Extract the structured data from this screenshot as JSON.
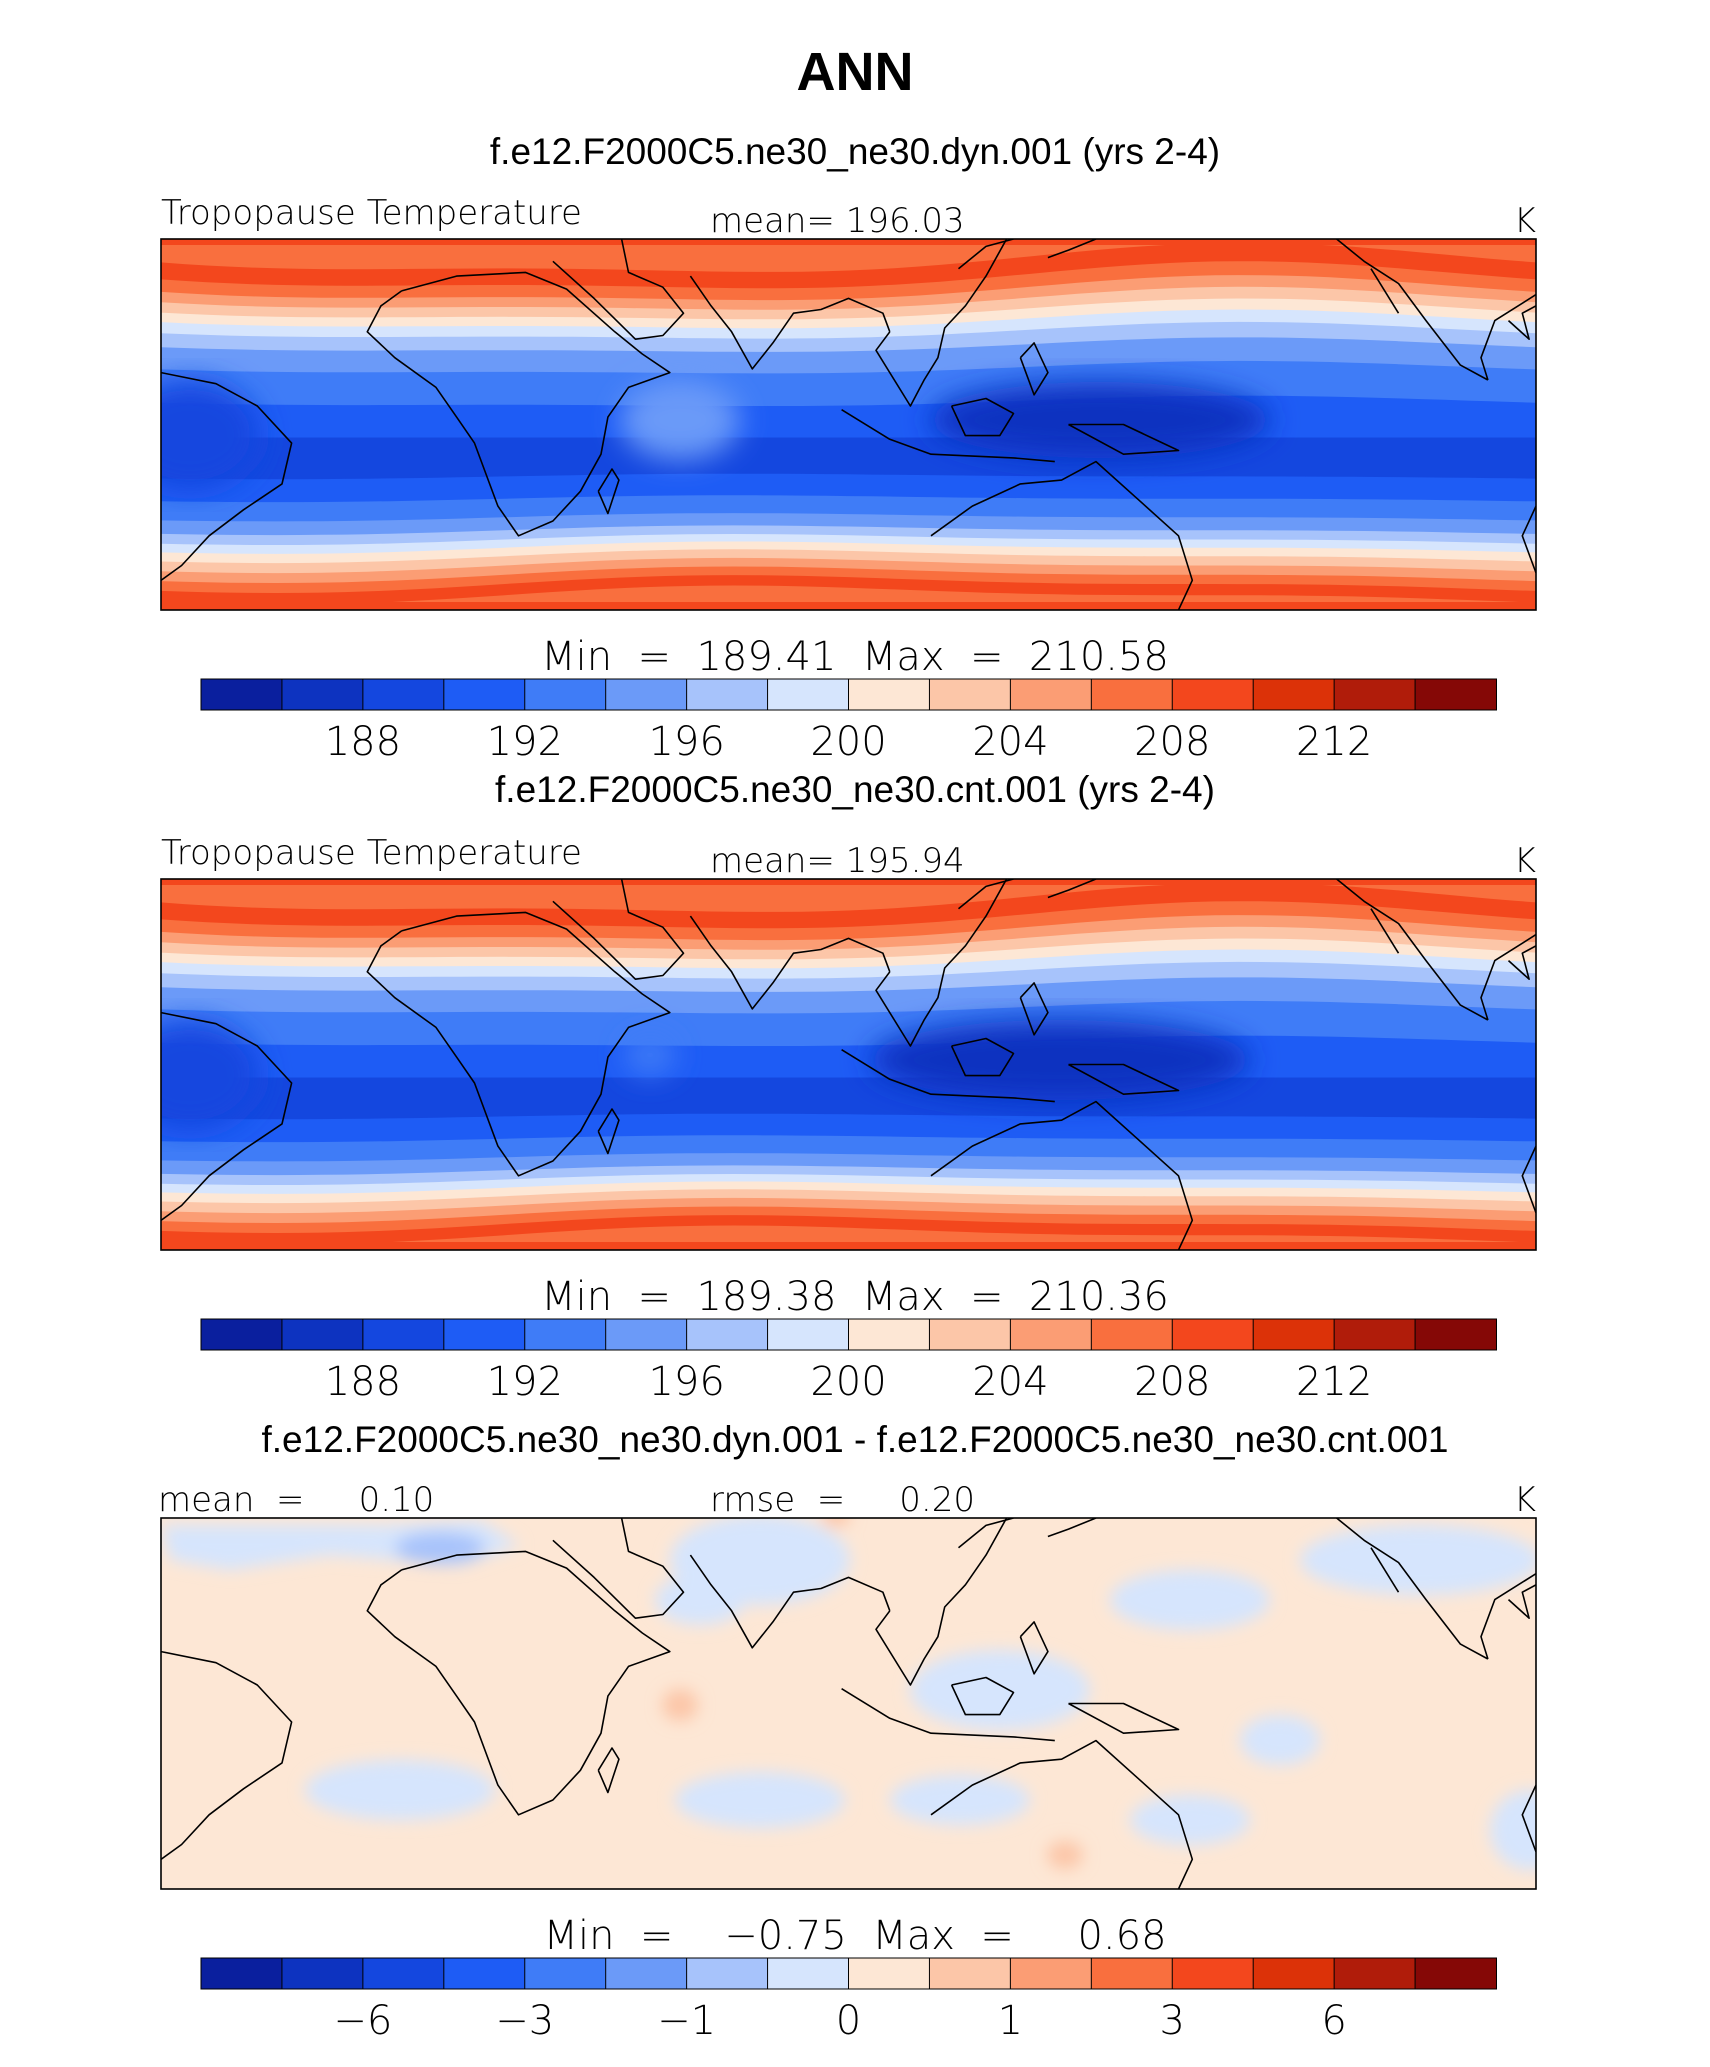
{
  "figure": {
    "title": "ANN"
  },
  "colors": {
    "levels13": [
      "#0a1f9e",
      "#0d33c0",
      "#1447df",
      "#1e5cf5",
      "#3f7cf7",
      "#6b9af8",
      "#a7c3fb",
      "#d6e5fd",
      "#fde7d5",
      "#fcc6a8",
      "#fb9d74",
      "#f96f3e",
      "#f3471d",
      "#dc3208",
      "#b01c0a",
      "#850806"
    ],
    "land_line": "#000000"
  },
  "chart_data": [
    {
      "type": "heatmap",
      "subtitle": "f.e12.F2000C5.ne30_ne30.dyn.001 (yrs 2-4)",
      "variable": "Tropopause Temperature",
      "mean_text": "mean=  196.03",
      "units": "K",
      "minmax_text": "Min  =  189.41  Max  =  210.58",
      "min": 189.41,
      "max": 210.58,
      "mean": 196.03,
      "colorbar_ticks": [
        "188",
        "192",
        "196",
        "200",
        "204",
        "208",
        "212"
      ],
      "colorbar_levels": [
        186,
        188,
        190,
        192,
        194,
        196,
        198,
        200,
        202,
        204,
        206,
        208,
        210,
        212,
        214
      ],
      "xrange": [
        0,
        360
      ],
      "yrange": [
        -90,
        90
      ]
    },
    {
      "type": "heatmap",
      "subtitle": "f.e12.F2000C5.ne30_ne30.cnt.001 (yrs 2-4)",
      "variable": "Tropopause Temperature",
      "mean_text": "mean=  195.94",
      "units": "K",
      "minmax_text": "Min  =  189.38  Max  =  210.36",
      "min": 189.38,
      "max": 210.36,
      "mean": 195.94,
      "colorbar_ticks": [
        "188",
        "192",
        "196",
        "200",
        "204",
        "208",
        "212"
      ],
      "colorbar_levels": [
        186,
        188,
        190,
        192,
        194,
        196,
        198,
        200,
        202,
        204,
        206,
        208,
        210,
        212,
        214
      ],
      "xrange": [
        0,
        360
      ],
      "yrange": [
        -90,
        90
      ]
    },
    {
      "type": "heatmap",
      "subtitle": "f.e12.F2000C5.ne30_ne30.dyn.001 - f.e12.F2000C5.ne30_ne30.cnt.001",
      "mean_text": "mean  =     0.10",
      "rmse_text": "rmse  =     0.20",
      "units": "K",
      "minmax_text": "Min  =    −0.75  Max  =     0.68",
      "min": -0.75,
      "max": 0.68,
      "mean": 0.1,
      "rmse": 0.2,
      "colorbar_ticks": [
        "−6",
        "−3",
        "−1",
        "0",
        "1",
        "3",
        "6"
      ],
      "colorbar_levels": [
        -9,
        -6,
        -4,
        -3,
        -2,
        -1,
        -0.5,
        0,
        0.5,
        1,
        2,
        3,
        4,
        6,
        9
      ],
      "xrange": [
        0,
        360
      ],
      "yrange": [
        -90,
        90
      ]
    }
  ]
}
